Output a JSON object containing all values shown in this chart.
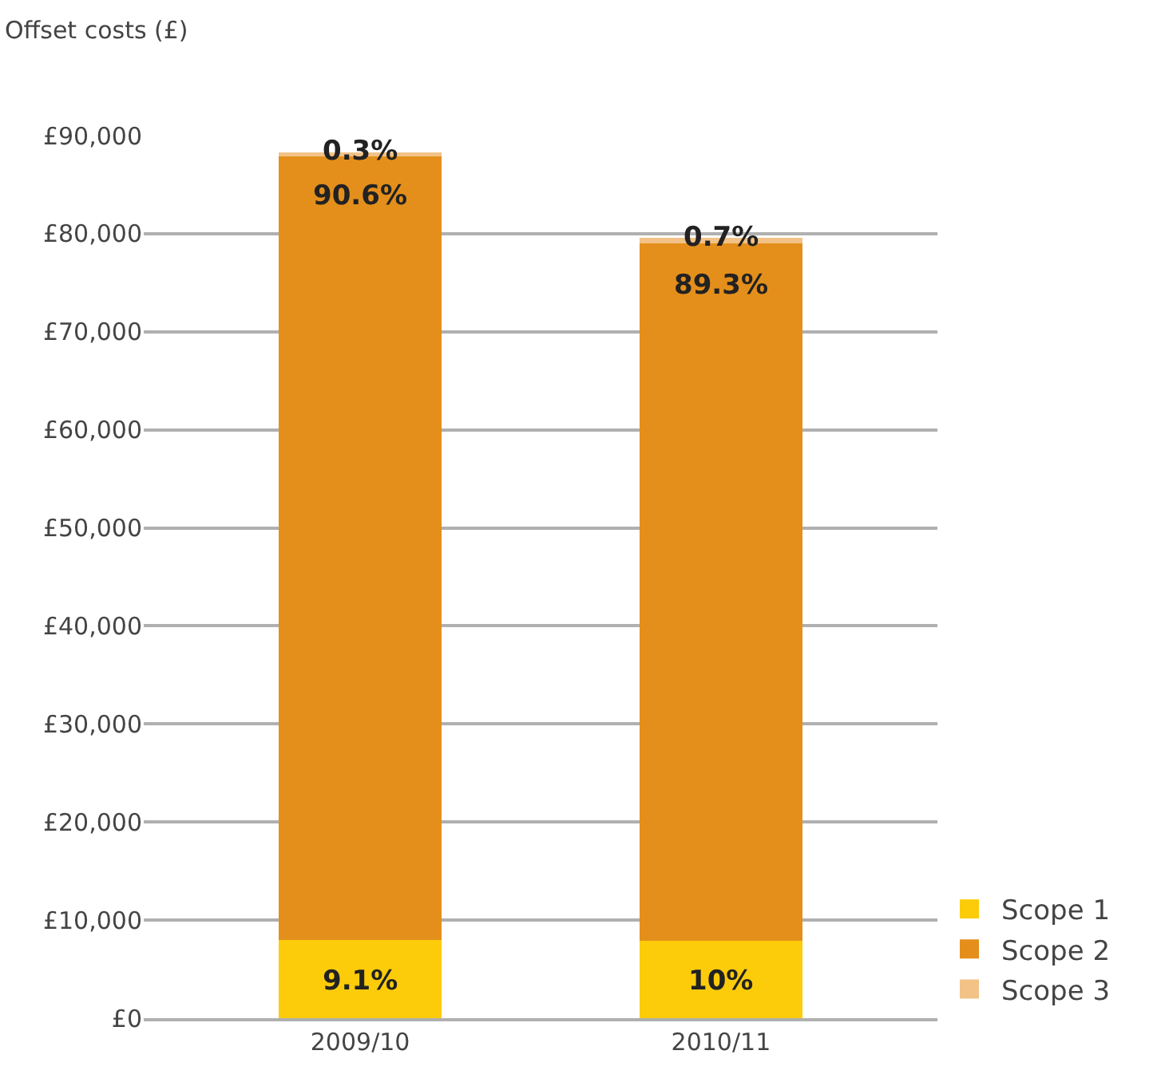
{
  "chart_data": {
    "type": "bar",
    "stacked": true,
    "ylabel": "Offset costs (£)",
    "categories": [
      "2009/10",
      "2010/11"
    ],
    "series": [
      {
        "name": "Scope 1",
        "color": "#fccc0a",
        "values": [
          8000,
          7900
        ]
      },
      {
        "name": "Scope 2",
        "color": "#e48f1b",
        "values": [
          80000,
          71100
        ]
      },
      {
        "name": "Scope 3",
        "color": "#f2c287",
        "values": [
          300,
          600
        ]
      }
    ],
    "annotations": [
      {
        "text": "9.1%",
        "x": "2009/10",
        "y": 8000
      },
      {
        "text": "90.6%",
        "x": "2009/10",
        "y": 88000
      },
      {
        "text": "0.3%",
        "x": "2009/10",
        "y": 88300
      },
      {
        "text": "10%",
        "x": "2010/11",
        "y": 7900
      },
      {
        "text": "89.3%",
        "x": "2010/11",
        "y": 79000
      },
      {
        "text": "0.7%",
        "x": "2010/11",
        "y": 79600
      }
    ],
    "ylim": [
      0,
      90000
    ],
    "yticks": [
      {
        "value": 0,
        "label": "£0"
      },
      {
        "value": 10000,
        "label": "£10,000"
      },
      {
        "value": 20000,
        "label": "£20,000"
      },
      {
        "value": 30000,
        "label": "£30,000"
      },
      {
        "value": 40000,
        "label": "£40,000"
      },
      {
        "value": 50000,
        "label": "£50,000"
      },
      {
        "value": 60000,
        "label": "£60,000"
      },
      {
        "value": 70000,
        "label": "£70,000"
      },
      {
        "value": 80000,
        "label": "£80,000"
      },
      {
        "value": 90000,
        "label": "£90,000"
      }
    ],
    "grid": "y",
    "legend": "bottom right"
  }
}
